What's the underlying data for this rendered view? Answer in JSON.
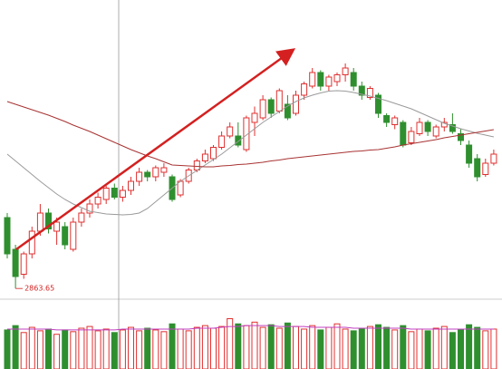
{
  "chart_data": {
    "type": "candlestick",
    "categories": [
      null,
      null,
      null,
      null,
      null,
      null,
      null,
      null,
      null,
      null,
      null,
      null,
      null,
      null,
      null,
      null,
      null,
      null,
      null,
      null,
      null,
      null,
      null,
      null,
      null,
      null,
      null,
      null,
      null,
      null,
      null,
      null,
      null,
      null,
      null,
      null,
      null,
      null,
      null,
      null,
      null,
      null,
      null,
      null,
      null,
      null,
      null,
      null,
      null,
      null,
      null,
      null,
      null,
      null,
      null,
      null,
      null,
      null,
      null,
      null
    ],
    "open": [
      3020,
      2950,
      2895,
      2940,
      2990,
      3030,
      2990,
      3000,
      2950,
      3010,
      3030,
      3050,
      3060,
      3085,
      3065,
      3080,
      3100,
      3120,
      3110,
      3120,
      3110,
      3070,
      3100,
      3125,
      3145,
      3150,
      3175,
      3200,
      3200,
      3170,
      3230,
      3240,
      3280,
      3255,
      3270,
      3250,
      3290,
      3310,
      3340,
      3310,
      3320,
      3335,
      3340,
      3310,
      3285,
      3290,
      3245,
      3225,
      3230,
      3185,
      3205,
      3230,
      3200,
      3220,
      3225,
      3205,
      3180,
      3150,
      3115,
      3140
    ],
    "high": [
      3030,
      2960,
      2945,
      3000,
      3050,
      3040,
      3020,
      3010,
      3020,
      3040,
      3060,
      3075,
      3090,
      3095,
      3090,
      3110,
      3130,
      3125,
      3135,
      3140,
      3115,
      3105,
      3130,
      3150,
      3170,
      3180,
      3210,
      3230,
      3230,
      3245,
      3265,
      3290,
      3285,
      3305,
      3290,
      3300,
      3320,
      3350,
      3345,
      3335,
      3340,
      3360,
      3350,
      3320,
      3310,
      3295,
      3250,
      3245,
      3235,
      3220,
      3240,
      3235,
      3225,
      3240,
      3250,
      3215,
      3190,
      3160,
      3150,
      3170
    ],
    "low": [
      2930,
      2863.65,
      2885,
      2930,
      2980,
      2985,
      2960,
      2950,
      2945,
      3000,
      3020,
      3040,
      3050,
      3060,
      3055,
      3070,
      3090,
      3100,
      3100,
      3110,
      3055,
      3065,
      3095,
      3120,
      3140,
      3145,
      3170,
      3195,
      3175,
      3165,
      3200,
      3235,
      3240,
      3250,
      3235,
      3245,
      3280,
      3305,
      3300,
      3300,
      3310,
      3320,
      3300,
      3280,
      3280,
      3240,
      3220,
      3215,
      3175,
      3180,
      3200,
      3200,
      3195,
      3210,
      3205,
      3180,
      3130,
      3100,
      3110,
      3135
    ],
    "close": [
      2940,
      2890,
      2940,
      2990,
      3030,
      2995,
      3010,
      2960,
      3010,
      3030,
      3050,
      3065,
      3085,
      3065,
      3080,
      3100,
      3120,
      3110,
      3130,
      3130,
      3060,
      3100,
      3125,
      3145,
      3160,
      3175,
      3200,
      3220,
      3180,
      3240,
      3250,
      3280,
      3250,
      3300,
      3240,
      3290,
      3315,
      3340,
      3310,
      3330,
      3335,
      3350,
      3310,
      3290,
      3305,
      3250,
      3230,
      3240,
      3180,
      3210,
      3230,
      3210,
      3220,
      3230,
      3210,
      3190,
      3140,
      3110,
      3140,
      3160
    ],
    "up_color": "#e03030",
    "down_color": "#2f8f2f",
    "ylim": [
      2840,
      3500
    ],
    "moving_averages": [
      {
        "color": "#9a9a9a",
        "values": [
          3160,
          3145,
          3130,
          3115,
          3100,
          3086,
          3072,
          3060,
          3050,
          3042,
          3034,
          3031,
          3028,
          3027,
          3026,
          3027,
          3030,
          3040,
          3055,
          3070,
          3085,
          3100,
          3112,
          3124,
          3136,
          3148,
          3160,
          3174,
          3188,
          3202,
          3216,
          3230,
          3242,
          3254,
          3266,
          3276,
          3284,
          3290,
          3295,
          3299,
          3300,
          3299,
          3296,
          3292,
          3288,
          3283,
          3278,
          3272,
          3266,
          3260,
          3252,
          3244,
          3236,
          3228,
          3222,
          3216,
          3211,
          3206,
          3202,
          3198
        ]
      },
      {
        "color": "#a83232",
        "values": [
          3276,
          3270,
          3264,
          3258,
          3252,
          3246,
          3239,
          3232,
          3224,
          3217,
          3210,
          3202,
          3194,
          3186,
          3178,
          3170,
          3163,
          3156,
          3150,
          3143,
          3136,
          3135,
          3134,
          3133,
          3132,
          3132,
          3134,
          3135,
          3137,
          3138,
          3140,
          3142,
          3145,
          3147,
          3150,
          3152,
          3154,
          3156,
          3158,
          3160,
          3162,
          3164,
          3166,
          3167,
          3169,
          3170,
          3173,
          3176,
          3180,
          3183,
          3186,
          3189,
          3192,
          3196,
          3199,
          3202,
          3205,
          3208,
          3211,
          3214
        ]
      }
    ],
    "volume": {
      "ylim": [
        0,
        70
      ],
      "values": [
        45,
        50,
        42,
        48,
        44,
        46,
        40,
        45,
        43,
        47,
        49,
        44,
        46,
        42,
        45,
        48,
        44,
        47,
        45,
        43,
        52,
        46,
        44,
        48,
        50,
        47,
        49,
        58,
        52,
        50,
        54,
        48,
        51,
        47,
        53,
        49,
        46,
        50,
        45,
        48,
        52,
        46,
        44,
        47,
        49,
        51,
        48,
        45,
        50,
        43,
        46,
        44,
        47,
        49,
        42,
        45,
        51,
        48,
        44,
        46
      ],
      "average": {
        "color": "#c040c0",
        "values": [
          46,
          46,
          46,
          46,
          46,
          46,
          45,
          45,
          45,
          45,
          45,
          45,
          45,
          45,
          46,
          46,
          46,
          46,
          46,
          46,
          46,
          46,
          46,
          47,
          47,
          47,
          48,
          49,
          49,
          50,
          50,
          50,
          50,
          49,
          49,
          49,
          49,
          48,
          48,
          48,
          48,
          48,
          47,
          47,
          47,
          47,
          47,
          47,
          47,
          46,
          46,
          46,
          46,
          46,
          46,
          46,
          46,
          46,
          46,
          46
        ]
      }
    }
  }
}
